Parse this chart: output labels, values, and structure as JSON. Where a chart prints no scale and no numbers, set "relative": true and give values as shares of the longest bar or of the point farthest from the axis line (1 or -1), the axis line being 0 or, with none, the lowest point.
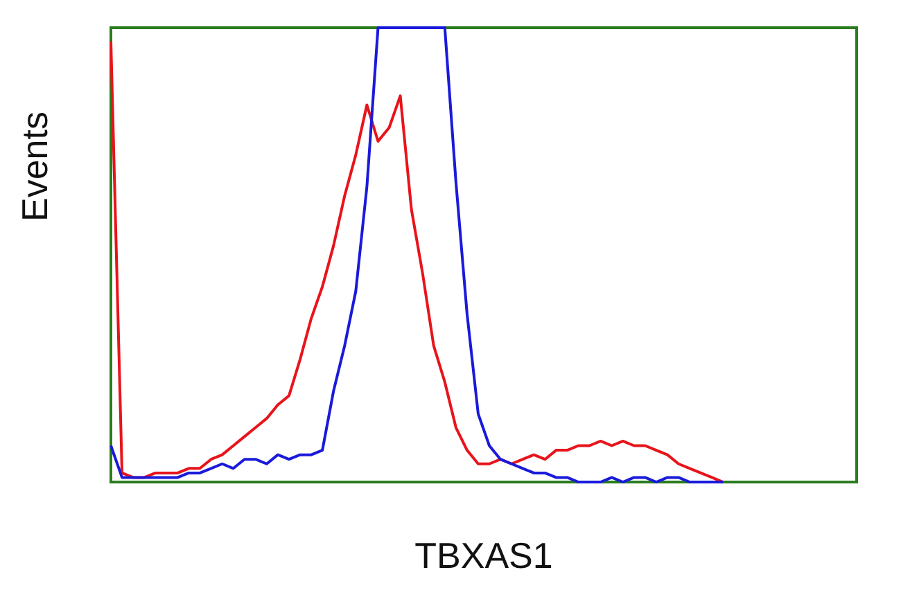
{
  "chart_data": {
    "type": "line",
    "relative": true,
    "xlabel": "TBXAS1",
    "ylabel": "Events",
    "marker": "none",
    "line_style": "solid",
    "grid": false,
    "categories": [
      null,
      null,
      null,
      null,
      null,
      null,
      null,
      null,
      null,
      null,
      null,
      null,
      null,
      null,
      null,
      null,
      null,
      null,
      null,
      null,
      null,
      null,
      null,
      null,
      null,
      null,
      null,
      null,
      null,
      null,
      null,
      null,
      null,
      null,
      null,
      null,
      null,
      null,
      null,
      null,
      null,
      null,
      null,
      null,
      null,
      null,
      null,
      null,
      null,
      null,
      null,
      null,
      null,
      null,
      null,
      null,
      null,
      null,
      null,
      null,
      null,
      null,
      null,
      null,
      null,
      null,
      null,
      null
    ],
    "series": [
      {
        "color": "#e8141b",
        "values": [
          0.97,
          0.02,
          0.01,
          0.01,
          0.02,
          0.02,
          0.02,
          0.03,
          0.03,
          0.05,
          0.06,
          0.08,
          0.1,
          0.12,
          0.14,
          0.17,
          0.19,
          0.27,
          0.36,
          0.43,
          0.52,
          0.63,
          0.72,
          0.83,
          0.75,
          0.78,
          0.85,
          0.6,
          0.46,
          0.3,
          0.22,
          0.12,
          0.07,
          0.04,
          0.04,
          0.05,
          0.04,
          0.05,
          0.06,
          0.05,
          0.07,
          0.07,
          0.08,
          0.08,
          0.09,
          0.08,
          0.09,
          0.08,
          0.08,
          0.07,
          0.06,
          0.04,
          0.03,
          0.02,
          0.01,
          0,
          null,
          null,
          null,
          null,
          null,
          null,
          null,
          null,
          null,
          null,
          null,
          null
        ]
      },
      {
        "color": "#1a1adb",
        "values": [
          0.08,
          0.01,
          0.01,
          0.01,
          0.01,
          0.01,
          0.01,
          0.02,
          0.02,
          0.03,
          0.04,
          0.03,
          0.05,
          0.05,
          0.04,
          0.06,
          0.05,
          0.06,
          0.06,
          0.07,
          0.2,
          0.3,
          0.42,
          0.65,
          1,
          1,
          1,
          1,
          1,
          1,
          1,
          0.66,
          0.37,
          0.15,
          0.08,
          0.05,
          0.04,
          0.03,
          0.02,
          0.02,
          0.01,
          0.01,
          0,
          0,
          0,
          0.01,
          0,
          0.01,
          0.01,
          0,
          0.01,
          0.01,
          0,
          0,
          0,
          0,
          null,
          null,
          null,
          null,
          null,
          null,
          null,
          null,
          null,
          null,
          null,
          null
        ]
      }
    ]
  }
}
